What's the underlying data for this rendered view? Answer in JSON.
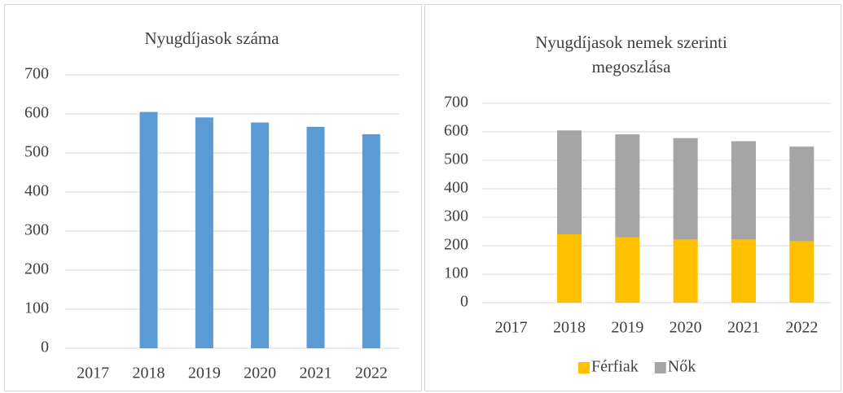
{
  "chart_data": [
    {
      "type": "bar",
      "title": "Nyugdíjasok száma",
      "categories": [
        "2017",
        "2018",
        "2019",
        "2020",
        "2021",
        "2022"
      ],
      "values": [
        null,
        605,
        591,
        578,
        567,
        548
      ],
      "color": "#5b9bd5",
      "ylim": [
        0,
        700
      ],
      "yticks": [
        0,
        100,
        200,
        300,
        400,
        500,
        600,
        700
      ],
      "grid": true
    },
    {
      "type": "stacked_bar",
      "title": "Nyugdíjasok nemek szerinti megoszlása",
      "categories": [
        "2017",
        "2018",
        "2019",
        "2020",
        "2021",
        "2022"
      ],
      "series": [
        {
          "name": "Férfiak",
          "color": "#ffc000",
          "values": [
            null,
            240,
            230,
            222,
            222,
            216
          ]
        },
        {
          "name": "Nők",
          "color": "#a5a5a5",
          "values": [
            null,
            365,
            361,
            356,
            345,
            332
          ]
        }
      ],
      "ylim": [
        0,
        700
      ],
      "yticks": [
        0,
        100,
        200,
        300,
        400,
        500,
        600,
        700
      ],
      "grid": true,
      "legend": "bottom"
    }
  ]
}
